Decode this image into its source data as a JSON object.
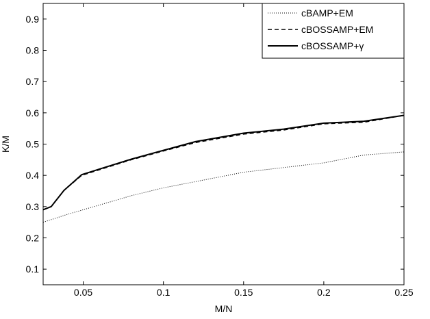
{
  "chart_data": {
    "type": "line",
    "xlabel": "M/N",
    "ylabel": "K/M",
    "xlim": [
      0.025,
      0.25
    ],
    "ylim": [
      0.05,
      0.95
    ],
    "xticks": [
      0.05,
      0.1,
      0.15,
      0.2,
      0.25
    ],
    "xtick_labels": [
      "0.05",
      "0.1",
      "0.15",
      "0.2",
      "0.25"
    ],
    "yticks": [
      0.1,
      0.2,
      0.3,
      0.4,
      0.5,
      0.6,
      0.7,
      0.8,
      0.9
    ],
    "ytick_labels": [
      "0.1",
      "0.2",
      "0.3",
      "0.4",
      "0.5",
      "0.6",
      "0.7",
      "0.8",
      "0.9"
    ],
    "grid": false,
    "legend_position": "top-right",
    "series": [
      {
        "name": "cBAMP+EM",
        "style": "dotted",
        "color": "#000000",
        "x": [
          0.025,
          0.04,
          0.05,
          0.06,
          0.08,
          0.1,
          0.125,
          0.15,
          0.175,
          0.2,
          0.225,
          0.25
        ],
        "y": [
          0.25,
          0.275,
          0.29,
          0.305,
          0.335,
          0.36,
          0.385,
          0.41,
          0.425,
          0.44,
          0.465,
          0.475
        ]
      },
      {
        "name": "cBOSSAMP+EM",
        "style": "dashed",
        "color": "#000000",
        "x": [
          0.025,
          0.03,
          0.038,
          0.049,
          0.06,
          0.08,
          0.1,
          0.12,
          0.15,
          0.175,
          0.2,
          0.225,
          0.25
        ],
        "y": [
          0.29,
          0.3,
          0.352,
          0.4,
          0.418,
          0.45,
          0.478,
          0.505,
          0.532,
          0.545,
          0.565,
          0.57,
          0.592
        ]
      },
      {
        "name": "cBOSSAMP+γ",
        "style": "solid",
        "color": "#000000",
        "x": [
          0.025,
          0.03,
          0.038,
          0.049,
          0.06,
          0.08,
          0.1,
          0.12,
          0.15,
          0.175,
          0.2,
          0.225,
          0.25
        ],
        "y": [
          0.29,
          0.3,
          0.352,
          0.402,
          0.42,
          0.452,
          0.48,
          0.508,
          0.535,
          0.548,
          0.567,
          0.573,
          0.592
        ]
      }
    ]
  }
}
